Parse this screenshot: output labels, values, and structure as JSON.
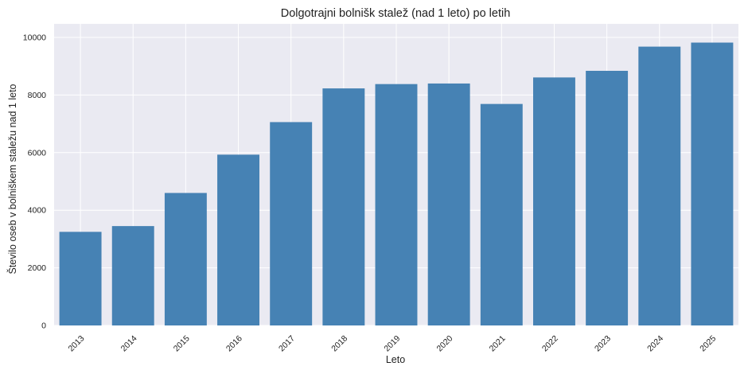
{
  "chart_data": {
    "type": "bar",
    "title": "Dolgotrajni bolnišk stalež (nad 1 leto) po letih",
    "xlabel": "Leto",
    "ylabel": "Število oseb v bolniškem staležu nad 1 leto",
    "categories": [
      "2013",
      "2014",
      "2015",
      "2016",
      "2017",
      "2018",
      "2019",
      "2020",
      "2021",
      "2022",
      "2023",
      "2024",
      "2025"
    ],
    "values": [
      3250,
      3450,
      4600,
      5930,
      7060,
      8230,
      8380,
      8400,
      7690,
      8610,
      8840,
      9680,
      9820
    ],
    "ylim": [
      0,
      10000
    ],
    "yticks": [
      0,
      2000,
      4000,
      6000,
      8000,
      10000
    ],
    "grid": true,
    "bar_color": "#4682b4",
    "plot_background": "#eaeaf2",
    "grid_color": "#ffffff"
  }
}
